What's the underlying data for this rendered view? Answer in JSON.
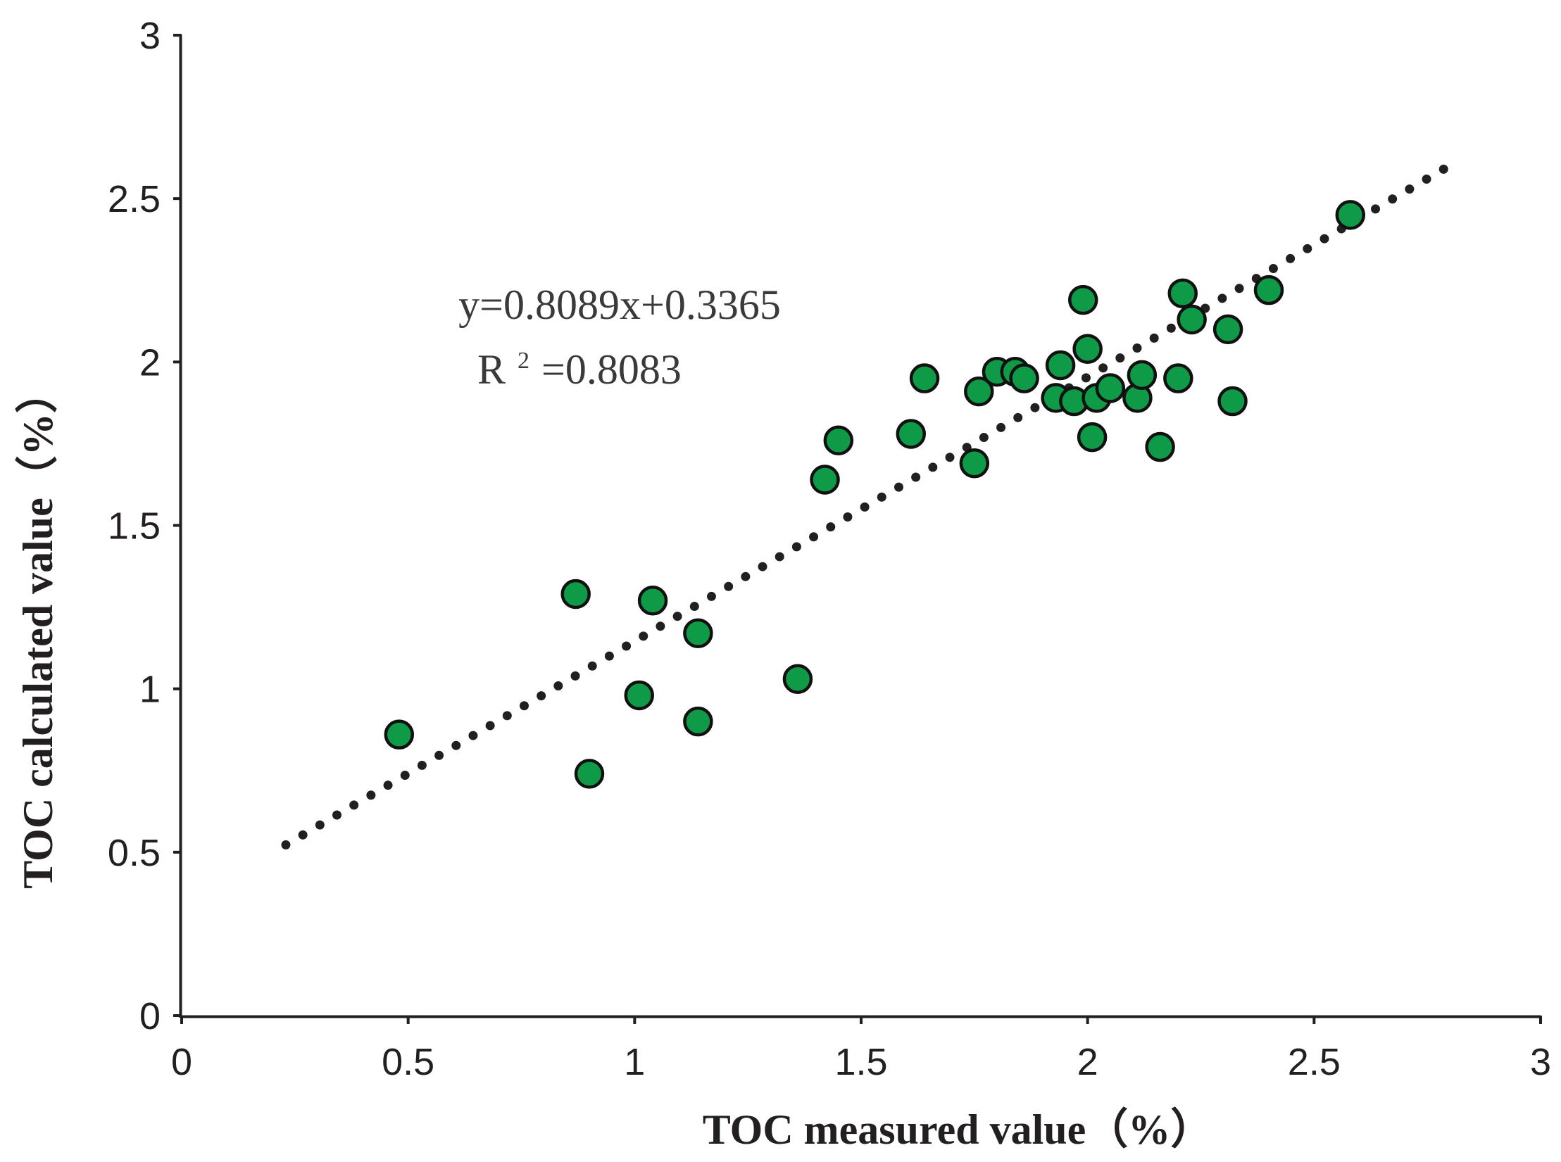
{
  "chart_data": {
    "type": "scatter",
    "title": "",
    "xlabel": "TOC measured value（%）",
    "ylabel": "TOC calculated value（%）",
    "xlim": [
      0,
      3
    ],
    "ylim": [
      0,
      3
    ],
    "x_ticks": [
      "0",
      "0.5",
      "1",
      "1.5",
      "2",
      "2.5",
      "3"
    ],
    "y_ticks": [
      "0",
      "0.5",
      "1",
      "1.5",
      "2",
      "2.5",
      "3"
    ],
    "grid": false,
    "series": [
      {
        "name": "samples",
        "marker_color": "#0f9a47",
        "points": [
          {
            "x": 0.48,
            "y": 0.86
          },
          {
            "x": 0.87,
            "y": 1.29
          },
          {
            "x": 0.9,
            "y": 0.74
          },
          {
            "x": 1.01,
            "y": 0.98
          },
          {
            "x": 1.04,
            "y": 1.27
          },
          {
            "x": 1.14,
            "y": 1.17
          },
          {
            "x": 1.14,
            "y": 0.9
          },
          {
            "x": 1.36,
            "y": 1.03
          },
          {
            "x": 1.42,
            "y": 1.64
          },
          {
            "x": 1.45,
            "y": 1.76
          },
          {
            "x": 1.61,
            "y": 1.78
          },
          {
            "x": 1.64,
            "y": 1.95
          },
          {
            "x": 1.75,
            "y": 1.69
          },
          {
            "x": 1.76,
            "y": 1.91
          },
          {
            "x": 1.8,
            "y": 1.97
          },
          {
            "x": 1.84,
            "y": 1.97
          },
          {
            "x": 1.86,
            "y": 1.95
          },
          {
            "x": 1.93,
            "y": 1.89
          },
          {
            "x": 1.94,
            "y": 1.99
          },
          {
            "x": 1.97,
            "y": 1.88
          },
          {
            "x": 1.99,
            "y": 2.19
          },
          {
            "x": 2.0,
            "y": 2.04
          },
          {
            "x": 2.01,
            "y": 1.77
          },
          {
            "x": 2.02,
            "y": 1.89
          },
          {
            "x": 2.05,
            "y": 1.92
          },
          {
            "x": 2.11,
            "y": 1.89
          },
          {
            "x": 2.12,
            "y": 1.96
          },
          {
            "x": 2.16,
            "y": 1.74
          },
          {
            "x": 2.2,
            "y": 1.95
          },
          {
            "x": 2.21,
            "y": 2.21
          },
          {
            "x": 2.23,
            "y": 2.13
          },
          {
            "x": 2.31,
            "y": 2.1
          },
          {
            "x": 2.32,
            "y": 1.88
          },
          {
            "x": 2.4,
            "y": 2.22
          },
          {
            "x": 2.58,
            "y": 2.45
          }
        ]
      }
    ],
    "trendline": {
      "type": "linear",
      "style": "dotted",
      "slope": 0.8089,
      "intercept": 0.3365,
      "x_range": [
        0.23,
        2.79
      ],
      "color": "#231f20"
    },
    "annotations": {
      "equation": "y=0.8089x+0.3365",
      "r_label": "R",
      "r_sup": "2",
      "r_value": "=0.8083"
    }
  }
}
